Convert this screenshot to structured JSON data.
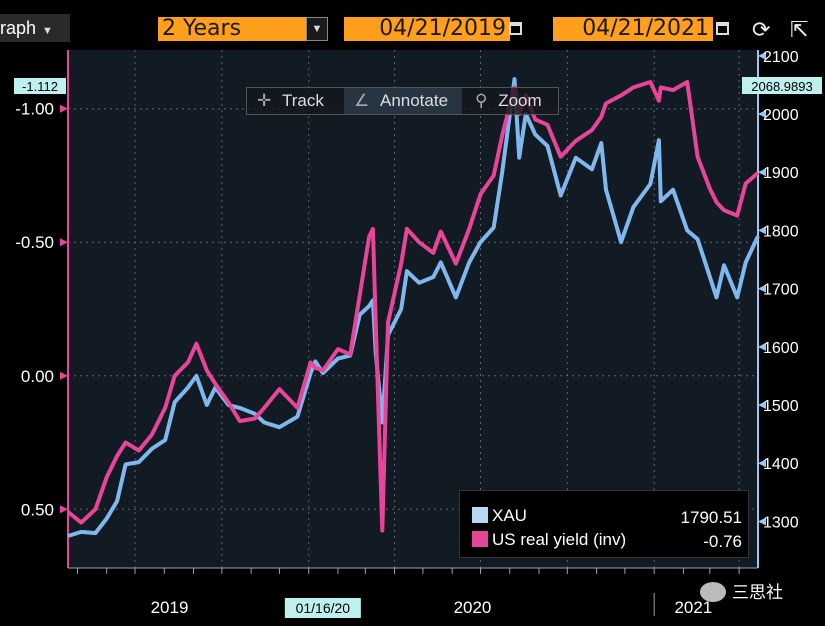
{
  "toolbar": {
    "graph_menu": "raph",
    "period": "2 Years",
    "start_date": "04/21/2019",
    "end_date": "04/21/2021"
  },
  "annotation_bar": {
    "track": "Track",
    "annotate": "Annotate",
    "zoom": "Zoom"
  },
  "legend": {
    "items": [
      {
        "label": "XAU",
        "value": "1790.51",
        "color": "#9ac8f2"
      },
      {
        "label": "US real yield (inv)",
        "value": "-0.76",
        "color": "#e8449a"
      }
    ]
  },
  "watermark": "三思社",
  "chart_data": {
    "type": "line",
    "x_range": [
      "2019-04-21",
      "2021-04-21"
    ],
    "x_tick_labels": [
      "2019",
      "2020",
      "2021"
    ],
    "crosshair_label": "01/16/20",
    "left_axis": {
      "ticks": [
        "-1.00",
        "-0.50",
        "0.00",
        "0.50"
      ],
      "tick_values": [
        -1.0,
        -0.5,
        0.0,
        0.5
      ],
      "range": [
        0.72,
        -1.22
      ],
      "last_value_label": "-1.112",
      "color": "#e8449a"
    },
    "right_axis": {
      "ticks": [
        "1300",
        "1400",
        "1500",
        "1600",
        "1700",
        "1800",
        "1900",
        "2000",
        "2100"
      ],
      "tick_values": [
        1300,
        1400,
        1500,
        1600,
        1700,
        1800,
        1900,
        2000,
        2100
      ],
      "range": [
        1220,
        2110
      ],
      "last_value_label": "2068.9893",
      "color": "#9ac8f2"
    },
    "series": [
      {
        "name": "XAU",
        "axis": "right",
        "color": "#7fb8ee",
        "points": [
          [
            "2019-04-21",
            1275
          ],
          [
            "2019-05-05",
            1282
          ],
          [
            "2019-05-20",
            1280
          ],
          [
            "2019-06-01",
            1305
          ],
          [
            "2019-06-12",
            1335
          ],
          [
            "2019-06-21",
            1398
          ],
          [
            "2019-07-05",
            1402
          ],
          [
            "2019-07-19",
            1425
          ],
          [
            "2019-08-02",
            1440
          ],
          [
            "2019-08-12",
            1505
          ],
          [
            "2019-08-26",
            1530
          ],
          [
            "2019-09-04",
            1550
          ],
          [
            "2019-09-15",
            1500
          ],
          [
            "2019-09-24",
            1530
          ],
          [
            "2019-10-08",
            1500
          ],
          [
            "2019-10-20",
            1495
          ],
          [
            "2019-11-05",
            1485
          ],
          [
            "2019-11-15",
            1470
          ],
          [
            "2019-12-01",
            1462
          ],
          [
            "2019-12-20",
            1480
          ],
          [
            "2020-01-03",
            1555
          ],
          [
            "2020-01-08",
            1575
          ],
          [
            "2020-01-16",
            1555
          ],
          [
            "2020-02-01",
            1580
          ],
          [
            "2020-02-14",
            1585
          ],
          [
            "2020-02-24",
            1655
          ],
          [
            "2020-03-05",
            1670
          ],
          [
            "2020-03-09",
            1680
          ],
          [
            "2020-03-12",
            1590
          ],
          [
            "2020-03-19",
            1470
          ],
          [
            "2020-03-25",
            1620
          ],
          [
            "2020-04-08",
            1665
          ],
          [
            "2020-04-14",
            1730
          ],
          [
            "2020-04-27",
            1710
          ],
          [
            "2020-05-12",
            1720
          ],
          [
            "2020-05-20",
            1745
          ],
          [
            "2020-06-05",
            1685
          ],
          [
            "2020-06-19",
            1745
          ],
          [
            "2020-07-01",
            1780
          ],
          [
            "2020-07-15",
            1805
          ],
          [
            "2020-07-24",
            1900
          ],
          [
            "2020-08-06",
            2060
          ],
          [
            "2020-08-11",
            1925
          ],
          [
            "2020-08-18",
            2000
          ],
          [
            "2020-08-28",
            1965
          ],
          [
            "2020-09-10",
            1945
          ],
          [
            "2020-09-24",
            1860
          ],
          [
            "2020-10-10",
            1925
          ],
          [
            "2020-10-27",
            1905
          ],
          [
            "2020-11-06",
            1950
          ],
          [
            "2020-11-11",
            1870
          ],
          [
            "2020-11-27",
            1780
          ],
          [
            "2020-12-10",
            1840
          ],
          [
            "2020-12-28",
            1880
          ],
          [
            "2021-01-06",
            1955
          ],
          [
            "2021-01-08",
            1850
          ],
          [
            "2021-01-21",
            1870
          ],
          [
            "2021-02-05",
            1800
          ],
          [
            "2021-02-16",
            1785
          ],
          [
            "2021-03-01",
            1720
          ],
          [
            "2021-03-08",
            1685
          ],
          [
            "2021-03-16",
            1740
          ],
          [
            "2021-03-30",
            1685
          ],
          [
            "2021-04-08",
            1745
          ],
          [
            "2021-04-21",
            1790
          ]
        ]
      },
      {
        "name": "US real yield (inv)",
        "axis": "left",
        "color": "#e8449a",
        "points": [
          [
            "2019-04-21",
            0.51
          ],
          [
            "2019-05-05",
            0.55
          ],
          [
            "2019-05-20",
            0.5
          ],
          [
            "2019-06-01",
            0.38
          ],
          [
            "2019-06-12",
            0.3
          ],
          [
            "2019-06-21",
            0.25
          ],
          [
            "2019-07-05",
            0.28
          ],
          [
            "2019-07-19",
            0.22
          ],
          [
            "2019-08-02",
            0.12
          ],
          [
            "2019-08-12",
            0.0
          ],
          [
            "2019-08-26",
            -0.05
          ],
          [
            "2019-09-04",
            -0.12
          ],
          [
            "2019-09-15",
            -0.02
          ],
          [
            "2019-09-24",
            0.03
          ],
          [
            "2019-10-08",
            0.1
          ],
          [
            "2019-10-20",
            0.17
          ],
          [
            "2019-11-05",
            0.16
          ],
          [
            "2019-11-15",
            0.12
          ],
          [
            "2019-12-01",
            0.05
          ],
          [
            "2019-12-20",
            0.12
          ],
          [
            "2020-01-03",
            -0.05
          ],
          [
            "2020-01-08",
            -0.03
          ],
          [
            "2020-01-16",
            -0.02
          ],
          [
            "2020-02-01",
            -0.1
          ],
          [
            "2020-02-14",
            -0.08
          ],
          [
            "2020-02-24",
            -0.3
          ],
          [
            "2020-03-05",
            -0.52
          ],
          [
            "2020-03-09",
            -0.55
          ],
          [
            "2020-03-12",
            -0.2
          ],
          [
            "2020-03-19",
            0.58
          ],
          [
            "2020-03-25",
            -0.2
          ],
          [
            "2020-04-08",
            -0.42
          ],
          [
            "2020-04-14",
            -0.55
          ],
          [
            "2020-04-27",
            -0.5
          ],
          [
            "2020-05-12",
            -0.46
          ],
          [
            "2020-05-20",
            -0.54
          ],
          [
            "2020-06-05",
            -0.42
          ],
          [
            "2020-06-19",
            -0.55
          ],
          [
            "2020-07-01",
            -0.68
          ],
          [
            "2020-07-15",
            -0.75
          ],
          [
            "2020-07-24",
            -0.9
          ],
          [
            "2020-08-06",
            -1.08
          ],
          [
            "2020-08-11",
            -0.98
          ],
          [
            "2020-08-18",
            -1.05
          ],
          [
            "2020-08-28",
            -0.96
          ],
          [
            "2020-09-10",
            -0.94
          ],
          [
            "2020-09-24",
            -0.82
          ],
          [
            "2020-10-10",
            -0.88
          ],
          [
            "2020-10-27",
            -0.92
          ],
          [
            "2020-11-06",
            -0.97
          ],
          [
            "2020-11-11",
            -1.02
          ],
          [
            "2020-11-27",
            -1.05
          ],
          [
            "2020-12-10",
            -1.08
          ],
          [
            "2020-12-28",
            -1.1
          ],
          [
            "2021-01-06",
            -1.03
          ],
          [
            "2021-01-08",
            -1.08
          ],
          [
            "2021-01-21",
            -1.07
          ],
          [
            "2021-02-05",
            -1.1
          ],
          [
            "2021-02-16",
            -0.82
          ],
          [
            "2021-03-01",
            -0.7
          ],
          [
            "2021-03-08",
            -0.65
          ],
          [
            "2021-03-16",
            -0.62
          ],
          [
            "2021-03-30",
            -0.6
          ],
          [
            "2021-04-08",
            -0.72
          ],
          [
            "2021-04-21",
            -0.76
          ]
        ]
      }
    ]
  }
}
